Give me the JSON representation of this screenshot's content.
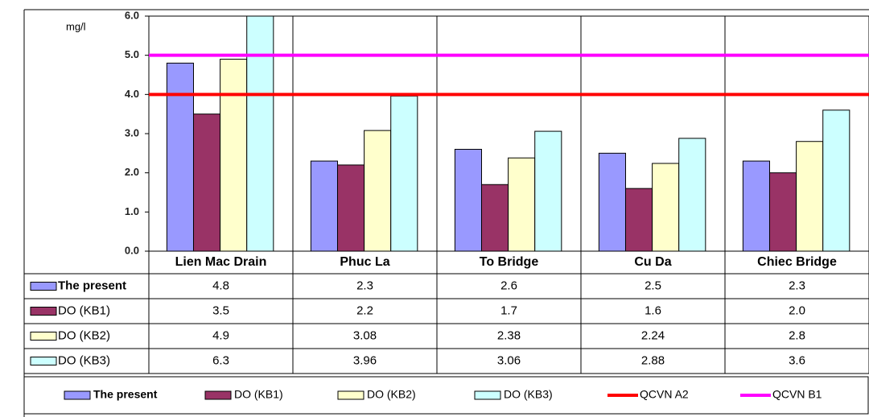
{
  "chart_data": {
    "type": "bar",
    "y_label": "mg/l",
    "categories": [
      "Lien Mac Drain",
      "Phuc La",
      "To Bridge",
      "Cu Da",
      "Chiec Bridge"
    ],
    "series": [
      {
        "name": "The present",
        "color": "#9999ff",
        "values": [
          4.8,
          2.3,
          2.6,
          2.5,
          2.3
        ],
        "value_labels": [
          "4.8",
          "2.3",
          "2.6",
          "2.5",
          "2.3"
        ]
      },
      {
        "name": "DO (KB1)",
        "color": "#993366",
        "values": [
          3.5,
          2.2,
          1.7,
          1.6,
          2.0
        ],
        "value_labels": [
          "3.5",
          "2.2",
          "1.7",
          "1.6",
          "2.0"
        ]
      },
      {
        "name": "DO (KB2)",
        "color": "#ffffcc",
        "values": [
          4.9,
          3.08,
          2.38,
          2.24,
          2.8
        ],
        "value_labels": [
          "4.9",
          "3.08",
          "2.38",
          "2.24",
          "2.8"
        ]
      },
      {
        "name": "DO (KB3)",
        "color": "#ccffff",
        "values": [
          6.3,
          3.96,
          3.06,
          2.88,
          3.6
        ],
        "value_labels": [
          "6.3",
          "3.96",
          "3.06",
          "2.88",
          "3.6"
        ]
      }
    ],
    "reference_lines": [
      {
        "name": "QCVN A2",
        "color": "#ff0000",
        "value": 4
      },
      {
        "name": "QCVN B1",
        "color": "#ff00ff",
        "value": 5
      }
    ],
    "ylim": [
      0,
      6
    ],
    "yticks": [
      {
        "value": 0,
        "label": "0.0"
      },
      {
        "value": 1,
        "label": "1.0"
      },
      {
        "value": 2,
        "label": "2.0"
      },
      {
        "value": 3,
        "label": "3.0"
      },
      {
        "value": 4,
        "label": "4.0"
      },
      {
        "value": 5,
        "label": "5.0"
      },
      {
        "value": 6,
        "label": "6.0"
      }
    ]
  }
}
